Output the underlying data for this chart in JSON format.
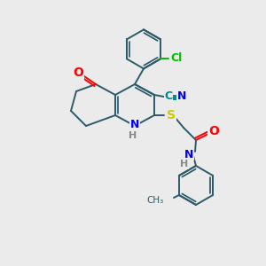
{
  "background_color": "#ebebeb",
  "bond_color": "#2d5a6b",
  "atom_colors": {
    "O": "#ff0000",
    "N": "#0000ff",
    "S": "#cccc00",
    "Cl": "#00bb00",
    "CN_C": "#008888",
    "CN_N": "#0000ff",
    "H": "#888888"
  },
  "figsize": [
    3.0,
    3.0
  ],
  "dpi": 100
}
